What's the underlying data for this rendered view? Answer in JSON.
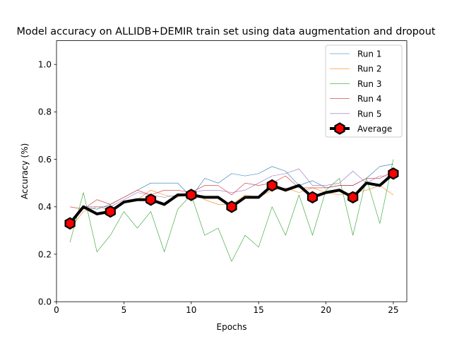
{
  "chart_data": {
    "type": "line",
    "title": "Model accuracy on ALLIDB+DEMIR train set using data augmentation and dropout",
    "xlabel": "Epochs",
    "ylabel": "Accuracy (%)",
    "xlim": [
      0,
      26
    ],
    "ylim": [
      0.0,
      1.1
    ],
    "xticks": [
      0,
      5,
      10,
      15,
      20,
      25
    ],
    "yticks": [
      0.0,
      0.2,
      0.4,
      0.6,
      0.8,
      1.0
    ],
    "grid": false,
    "legend_position": "top-right",
    "x": [
      1,
      2,
      3,
      4,
      5,
      6,
      7,
      8,
      9,
      10,
      11,
      12,
      13,
      14,
      15,
      16,
      17,
      18,
      19,
      20,
      21,
      22,
      23,
      24,
      25
    ],
    "series": [
      {
        "name": "Run 1",
        "color": "#1f77b4",
        "values": [
          0.33,
          0.4,
          0.39,
          0.41,
          0.44,
          0.47,
          0.5,
          0.5,
          0.5,
          0.44,
          0.52,
          0.5,
          0.54,
          0.53,
          0.54,
          0.57,
          0.55,
          0.49,
          0.51,
          0.48,
          0.49,
          0.49,
          0.52,
          0.57,
          0.58
        ]
      },
      {
        "name": "Run 2",
        "color": "#ff7f0e",
        "values": [
          0.31,
          0.38,
          0.4,
          0.39,
          0.42,
          0.43,
          0.47,
          0.45,
          0.44,
          0.47,
          0.43,
          0.41,
          0.41,
          0.45,
          0.44,
          0.47,
          0.48,
          0.46,
          0.48,
          0.46,
          0.45,
          0.46,
          0.47,
          0.49,
          0.45
        ]
      },
      {
        "name": "Run 3",
        "color": "#2ca02c",
        "values": [
          0.25,
          0.46,
          0.21,
          0.28,
          0.38,
          0.31,
          0.38,
          0.21,
          0.39,
          0.45,
          0.28,
          0.31,
          0.17,
          0.28,
          0.23,
          0.4,
          0.28,
          0.45,
          0.28,
          0.47,
          0.52,
          0.28,
          0.52,
          0.33,
          0.6
        ]
      },
      {
        "name": "Run 4",
        "color": "#d62728",
        "values": [
          0.4,
          0.39,
          0.43,
          0.41,
          0.44,
          0.47,
          0.45,
          0.47,
          0.47,
          0.46,
          0.49,
          0.49,
          0.45,
          0.5,
          0.49,
          0.5,
          0.53,
          0.48,
          0.48,
          0.48,
          0.49,
          0.49,
          0.52,
          0.52,
          0.55
        ]
      },
      {
        "name": "Run 5",
        "color": "#9467bd",
        "values": [
          0.33,
          0.4,
          0.4,
          0.4,
          0.43,
          0.46,
          0.45,
          0.44,
          0.45,
          0.46,
          0.47,
          0.47,
          0.46,
          0.47,
          0.5,
          0.53,
          0.54,
          0.56,
          0.49,
          0.49,
          0.5,
          0.55,
          0.5,
          0.53,
          0.53
        ]
      },
      {
        "name": "Average",
        "color": "#000000",
        "marker": "hexagon",
        "marker_fill": "#ff0000",
        "values": [
          0.33,
          0.4,
          0.37,
          0.38,
          0.42,
          0.43,
          0.43,
          0.41,
          0.45,
          0.45,
          0.44,
          0.44,
          0.4,
          0.44,
          0.44,
          0.49,
          0.47,
          0.49,
          0.44,
          0.46,
          0.47,
          0.44,
          0.5,
          0.49,
          0.54
        ]
      }
    ],
    "average_marker_indices": [
      0,
      3,
      6,
      9,
      12,
      15,
      18,
      21,
      24
    ]
  }
}
